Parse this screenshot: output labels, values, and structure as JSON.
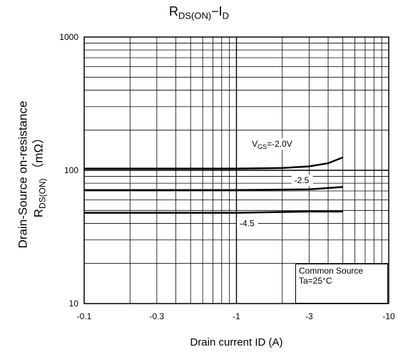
{
  "chart_data": {
    "type": "line",
    "title_main": "R",
    "title_main_sub": "DS(ON)",
    "title_dash": "−I",
    "title_dash_sub": "D",
    "xlabel": "Drain current  ID (A)",
    "ylabel_line1": "Drain-Source on-resistance",
    "ylabel_line2_main": "R",
    "ylabel_line2_sub": "DS(ON)",
    "ylabel_line2_unit": "（mΩ）",
    "x_scale": "log",
    "y_scale": "log",
    "xlim_abs": [
      0.1,
      10
    ],
    "ylim": [
      10,
      1000
    ],
    "x_ticks": [
      {
        "value": 0.1,
        "label": "-0.1"
      },
      {
        "value": 0.3,
        "label": "-0.3"
      },
      {
        "value": 1,
        "label": "-1"
      },
      {
        "value": 3,
        "label": "-3"
      },
      {
        "value": 10,
        "label": "-10"
      }
    ],
    "y_ticks": [
      {
        "value": 10,
        "label": "10"
      },
      {
        "value": 100,
        "label": "100"
      },
      {
        "value": 1000,
        "label": "1000"
      }
    ],
    "grid": true,
    "series": [
      {
        "name": "VGS=-2.0V",
        "points": [
          [
            0.1,
            103
          ],
          [
            1,
            103
          ],
          [
            2,
            104
          ],
          [
            3,
            107
          ],
          [
            4,
            113
          ],
          [
            5,
            125
          ]
        ]
      },
      {
        "name": "-2.5",
        "points": [
          [
            0.1,
            71
          ],
          [
            1,
            71
          ],
          [
            3,
            72
          ],
          [
            5,
            75
          ]
        ]
      },
      {
        "name": "-4.5",
        "points": [
          [
            0.1,
            48
          ],
          [
            1,
            48
          ],
          [
            3,
            49
          ],
          [
            5,
            49
          ]
        ]
      }
    ],
    "annotations": [
      {
        "text_main": "V",
        "text_sub": "GS",
        "text_rest": "=-2.0V",
        "x": 1.5,
        "y": 150
      },
      {
        "text": "-2.5",
        "x": 2.4,
        "y": 80
      },
      {
        "text": "-4.5",
        "x": 1.05,
        "y": 38
      }
    ],
    "legend": {
      "line1": "Common Source",
      "line2": "Ta=25°C",
      "position": "bottom-right"
    }
  }
}
